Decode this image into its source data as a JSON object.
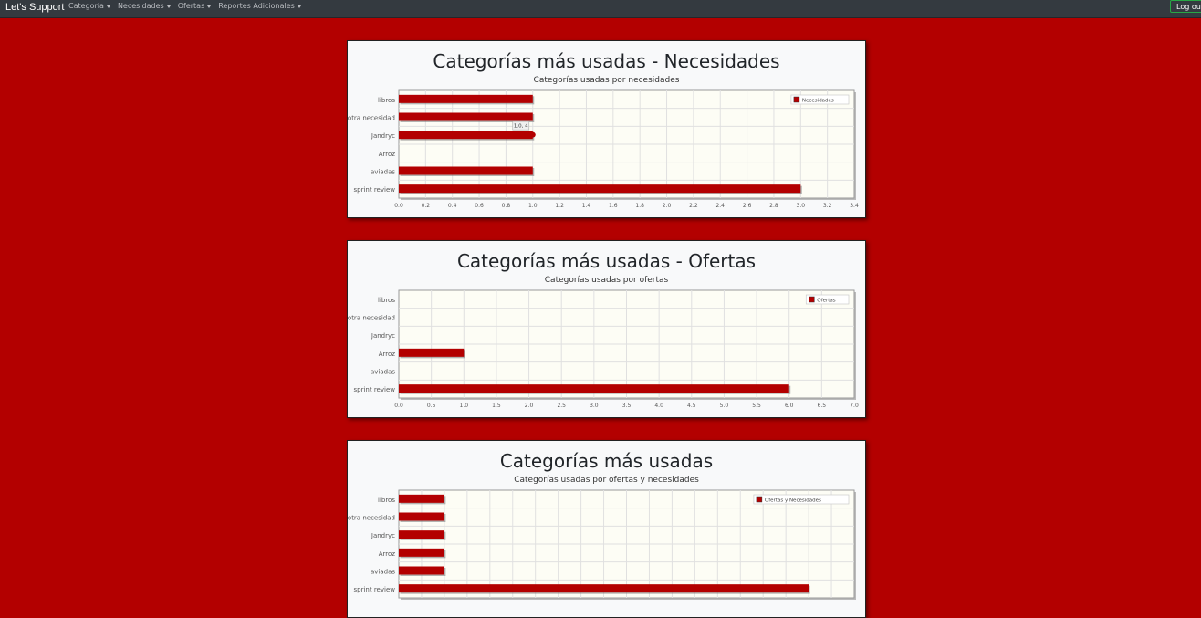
{
  "navbar": {
    "brand": "Let's Support",
    "items": [
      {
        "label": "Categoría"
      },
      {
        "label": "Necesidades"
      },
      {
        "label": "Ofertas"
      },
      {
        "label": "Reportes Adicionales"
      }
    ],
    "logout": "Log out"
  },
  "cards": [
    {
      "title": "Categorías más usadas - Necesidades",
      "subtitle": "Categorías usadas por necesidades"
    },
    {
      "title": "Categorías más usadas - Ofertas",
      "subtitle": "Categorías usadas por ofertas"
    },
    {
      "title": "Categorías más usadas",
      "subtitle": "Categorías usadas por ofertas y necesidades"
    }
  ],
  "colors": {
    "bar": "#b30000",
    "plot_bg": "#fdfdf5",
    "grid": "#e0e0e0"
  },
  "chart_data": [
    {
      "type": "bar",
      "orientation": "horizontal",
      "categories": [
        "libros",
        "otra necesidad",
        "Jandryc",
        "Arroz",
        "aviadas",
        "sprint review"
      ],
      "series": [
        {
          "name": "Necesidades",
          "values": [
            1,
            1,
            1,
            0,
            1,
            3
          ]
        }
      ],
      "xlim": [
        0,
        3.4
      ],
      "xticks": [
        "0.0",
        "0.2",
        "0.4",
        "0.6",
        "0.8",
        "1.0",
        "1.2",
        "1.4",
        "1.6",
        "1.8",
        "2.0",
        "2.2",
        "2.4",
        "2.6",
        "2.8",
        "3.0",
        "3.2",
        "3.4"
      ],
      "legend": "top-right",
      "grid": true,
      "tooltip": {
        "text": "1.0, 4",
        "category": "Jandryc"
      }
    },
    {
      "type": "bar",
      "orientation": "horizontal",
      "categories": [
        "libros",
        "otra necesidad",
        "Jandryc",
        "Arroz",
        "aviadas",
        "sprint review"
      ],
      "series": [
        {
          "name": "Ofertas",
          "values": [
            0,
            0,
            0,
            1,
            0,
            6
          ]
        }
      ],
      "xlim": [
        0,
        7
      ],
      "xticks": [
        "0.0",
        "0.5",
        "1.0",
        "1.5",
        "2.0",
        "2.5",
        "3.0",
        "3.5",
        "4.0",
        "4.5",
        "5.0",
        "5.5",
        "6.0",
        "6.5",
        "7.0"
      ],
      "legend": "top-right",
      "grid": true
    },
    {
      "type": "bar",
      "orientation": "horizontal",
      "categories": [
        "libros",
        "otra necesidad",
        "Jandryc",
        "Arroz",
        "aviadas",
        "sprint review"
      ],
      "series": [
        {
          "name": "Ofertas y Necesidades",
          "values": [
            1,
            1,
            1,
            1,
            1,
            9
          ]
        }
      ],
      "xlim": [
        0,
        10
      ],
      "xticks": [],
      "legend": "top-right",
      "grid": true
    }
  ]
}
